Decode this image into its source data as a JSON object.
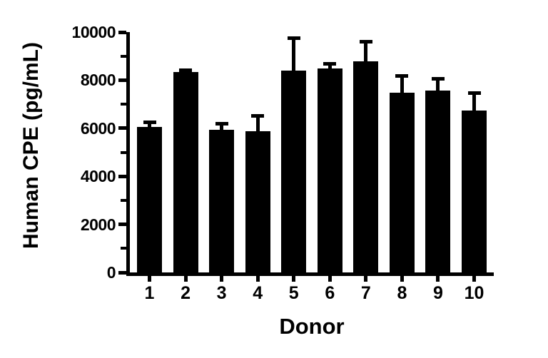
{
  "chart_data": {
    "type": "bar",
    "title": "",
    "xlabel": "Donor",
    "ylabel": "Human CPE (pg/mL)",
    "categories": [
      "1",
      "2",
      "3",
      "4",
      "5",
      "6",
      "7",
      "8",
      "9",
      "10"
    ],
    "series": [
      {
        "name": "Human CPE",
        "values": [
          6050,
          8330,
          5930,
          5880,
          8400,
          8500,
          8780,
          7480,
          7560,
          6730
        ],
        "errors_upper": [
          200,
          80,
          270,
          620,
          1350,
          170,
          830,
          690,
          510,
          720
        ]
      }
    ],
    "error_bars": "upper-only",
    "ylim": [
      0,
      10000
    ],
    "ytick_major": [
      0,
      2000,
      4000,
      6000,
      8000,
      10000
    ],
    "ytick_major_labels": [
      "0",
      "2000",
      "4000",
      "6000",
      "8000",
      "10000"
    ],
    "ytick_minor": [
      1000,
      3000,
      5000,
      7000,
      9000
    ],
    "grid": "off",
    "legend": "none",
    "bar_color": "#000000",
    "axis_color": "#000000",
    "background_color": "#ffffff"
  }
}
